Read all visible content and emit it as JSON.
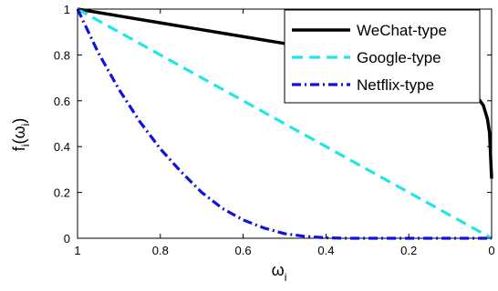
{
  "chart_data": {
    "type": "line",
    "xlabel": "ω",
    "xlabel_sub": "i",
    "ylabel": "f(ω)",
    "ylabel_main": "f",
    "ylabel_sub": "i",
    "ylabel_open": "(ω",
    "ylabel_inner_sub": "i",
    "ylabel_close": ")",
    "xlim": [
      1,
      0
    ],
    "ylim": [
      0,
      1
    ],
    "x_reversed": true,
    "xticks": [
      1,
      0.8,
      0.6,
      0.4,
      0.2,
      0
    ],
    "xtick_labels": [
      "1",
      "0.8",
      "0.6",
      "0.4",
      "0.2",
      "0"
    ],
    "yticks": [
      0,
      0.2,
      0.4,
      0.6,
      0.8,
      1
    ],
    "ytick_labels": [
      "0",
      "0.2",
      "0.4",
      "0.6",
      "0.8",
      "1"
    ],
    "grid": false,
    "legend_position": "top-right",
    "series": [
      {
        "name": "WeChat-type",
        "color": "#000000",
        "style": "solid",
        "x": [
          1,
          0.9,
          0.8,
          0.7,
          0.6,
          0.5,
          0.4,
          0.3,
          0.2,
          0.15,
          0.1,
          0.06,
          0.04,
          0.02,
          0.01,
          0.005,
          0
        ],
        "y": [
          1,
          0.97,
          0.94,
          0.91,
          0.88,
          0.85,
          0.81,
          0.77,
          0.73,
          0.71,
          0.69,
          0.66,
          0.63,
          0.58,
          0.52,
          0.46,
          0.26
        ]
      },
      {
        "name": "Google-type",
        "color": "#22e5e5",
        "style": "dashed",
        "x": [
          1,
          0.8,
          0.6,
          0.4,
          0.2,
          0
        ],
        "y": [
          1,
          0.8,
          0.6,
          0.4,
          0.2,
          0
        ]
      },
      {
        "name": "Netflix-type",
        "color": "#1010e0",
        "style": "dashdot",
        "x": [
          1,
          0.95,
          0.9,
          0.85,
          0.8,
          0.75,
          0.7,
          0.65,
          0.6,
          0.55,
          0.5,
          0.45,
          0.4,
          0.35,
          0.3,
          0.2,
          0.1,
          0
        ],
        "y": [
          1,
          0.81,
          0.65,
          0.51,
          0.39,
          0.29,
          0.2,
          0.13,
          0.08,
          0.045,
          0.02,
          0.008,
          0.002,
          0,
          0,
          0,
          0,
          0
        ]
      }
    ]
  }
}
